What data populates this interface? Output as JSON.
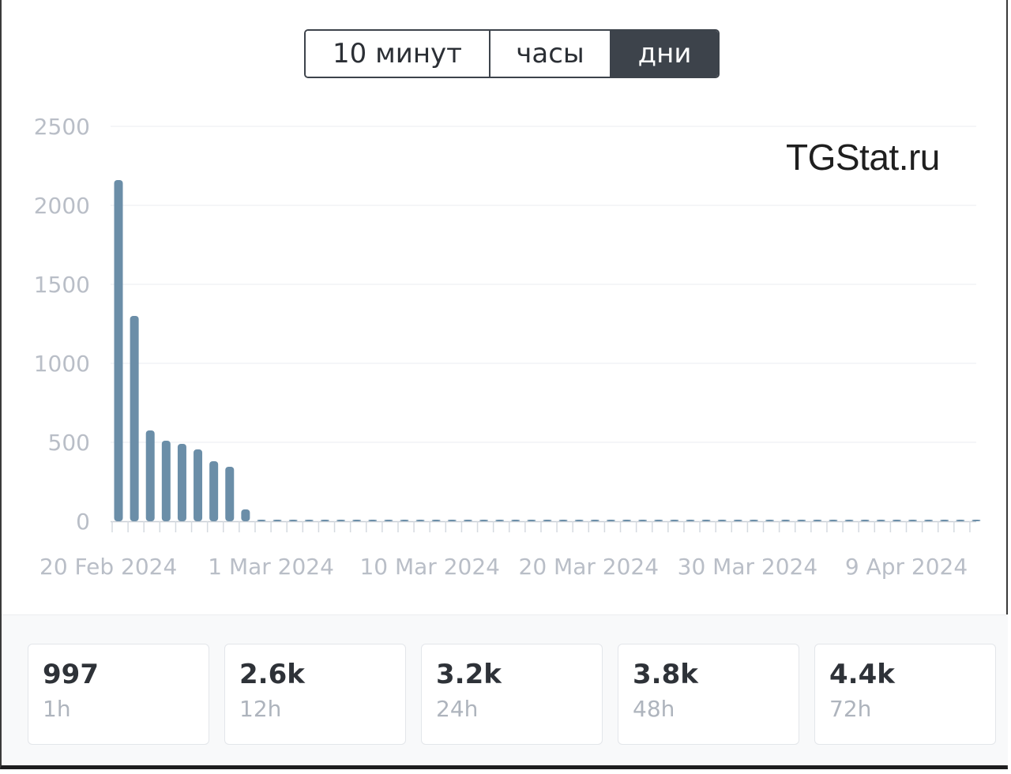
{
  "toggle": {
    "options": [
      "10 минут",
      "часы",
      "дни"
    ],
    "active": "дни"
  },
  "watermark": "TGStat.ru",
  "colors": {
    "bar": "#6b8ea8",
    "active_toggle": "#3d434b"
  },
  "chart_data": {
    "type": "bar",
    "x_start": "20 Feb 2024",
    "x_end": "15 Apr 2024",
    "values": [
      2160,
      1300,
      575,
      510,
      490,
      455,
      380,
      345,
      75,
      8,
      5,
      5,
      5,
      4,
      4,
      4,
      4,
      4,
      4,
      4,
      4,
      4,
      4,
      5,
      4,
      4,
      4,
      4,
      4,
      4,
      4,
      4,
      4,
      4,
      4,
      5,
      4,
      4,
      4,
      4,
      4,
      4,
      4,
      4,
      4,
      4,
      4,
      4,
      4,
      4,
      4,
      4,
      4,
      4,
      4
    ],
    "ylim": [
      0,
      2500
    ],
    "yticks": [
      0,
      500,
      1000,
      1500,
      2000,
      2500
    ],
    "xtick_labels": [
      "20 Feb 2024",
      "1 Mar 2024",
      "10 Mar 2024",
      "20 Mar 2024",
      "30 Mar 2024",
      "9 Apr 2024"
    ],
    "grid": true
  },
  "stats": [
    {
      "value": "997",
      "label": "1h"
    },
    {
      "value": "2.6k",
      "label": "12h"
    },
    {
      "value": "3.2k",
      "label": "24h"
    },
    {
      "value": "3.8k",
      "label": "48h"
    },
    {
      "value": "4.4k",
      "label": "72h"
    }
  ]
}
